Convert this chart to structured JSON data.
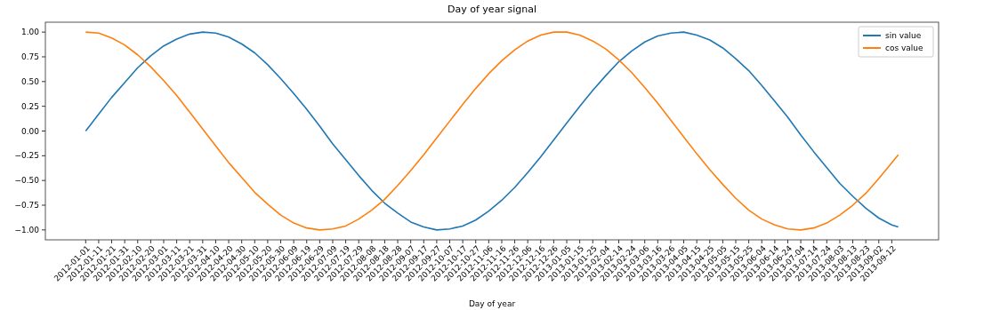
{
  "chart_data": {
    "type": "line",
    "title": "Day of year signal",
    "xlabel": "Day of year",
    "x": [
      "2012-01-01",
      "2012-01-11",
      "2012-01-21",
      "2012-01-31",
      "2012-02-10",
      "2012-02-20",
      "2012-03-01",
      "2012-03-11",
      "2012-03-21",
      "2012-03-31",
      "2012-04-10",
      "2012-04-20",
      "2012-04-30",
      "2012-05-10",
      "2012-05-20",
      "2012-05-30",
      "2012-06-09",
      "2012-06-19",
      "2012-06-29",
      "2012-07-09",
      "2012-07-19",
      "2012-07-29",
      "2012-08-08",
      "2012-08-18",
      "2012-08-28",
      "2012-09-07",
      "2012-09-17",
      "2012-09-27",
      "2012-10-07",
      "2012-10-17",
      "2012-10-27",
      "2012-11-06",
      "2012-11-16",
      "2012-11-26",
      "2012-12-06",
      "2012-12-16",
      "2012-12-26",
      "2013-01-05",
      "2013-01-15",
      "2013-01-25",
      "2013-02-04",
      "2013-02-14",
      "2013-02-24",
      "2013-03-06",
      "2013-03-16",
      "2013-03-26",
      "2013-04-05",
      "2013-04-15",
      "2013-04-25",
      "2013-05-05",
      "2013-05-15",
      "2013-05-25",
      "2013-06-04",
      "2013-06-14",
      "2013-06-24",
      "2013-07-04",
      "2013-07-14",
      "2013-07-24",
      "2013-08-03",
      "2013-08-13",
      "2013-08-23",
      "2013-09-02",
      "2013-09-12",
      "2013-09-17"
    ],
    "series": [
      {
        "name": "sin value",
        "color": "#1f77b4",
        "values": [
          0,
          0.17,
          0.34,
          0.49,
          0.64,
          0.76,
          0.86,
          0.93,
          0.98,
          1.0,
          0.99,
          0.95,
          0.88,
          0.79,
          0.67,
          0.53,
          0.38,
          0.22,
          0.05,
          -0.13,
          -0.29,
          -0.45,
          -0.6,
          -0.73,
          -0.83,
          -0.92,
          -0.97,
          -1.0,
          -0.99,
          -0.96,
          -0.9,
          -0.81,
          -0.7,
          -0.57,
          -0.42,
          -0.26,
          -0.09,
          0.08,
          0.25,
          0.41,
          0.56,
          0.7,
          0.81,
          0.9,
          0.96,
          0.99,
          1.0,
          0.97,
          0.92,
          0.84,
          0.73,
          0.61,
          0.46,
          0.3,
          0.14,
          -0.04,
          -0.21,
          -0.37,
          -0.53,
          -0.66,
          -0.78,
          -0.88,
          -0.95,
          -0.97
        ]
      },
      {
        "name": "cos value",
        "color": "#ff7f0e",
        "values": [
          1.0,
          0.99,
          0.94,
          0.87,
          0.77,
          0.65,
          0.51,
          0.36,
          0.19,
          0.02,
          -0.15,
          -0.32,
          -0.47,
          -0.62,
          -0.74,
          -0.85,
          -0.93,
          -0.98,
          -1.0,
          -0.99,
          -0.96,
          -0.89,
          -0.8,
          -0.69,
          -0.55,
          -0.4,
          -0.24,
          -0.07,
          0.1,
          0.27,
          0.43,
          0.58,
          0.71,
          0.82,
          0.91,
          0.97,
          1.0,
          1.0,
          0.97,
          0.91,
          0.83,
          0.72,
          0.59,
          0.44,
          0.28,
          0.11,
          -0.06,
          -0.23,
          -0.39,
          -0.54,
          -0.68,
          -0.8,
          -0.89,
          -0.95,
          -0.99,
          -1.0,
          -0.98,
          -0.93,
          -0.85,
          -0.75,
          -0.63,
          -0.48,
          -0.32,
          -0.24
        ]
      }
    ],
    "xlim": [
      "2011-12-01",
      "2013-10-18"
    ],
    "xticks": [
      "2012-01-01",
      "2012-01-11",
      "2012-01-21",
      "2012-01-31",
      "2012-02-10",
      "2012-02-20",
      "2012-03-01",
      "2012-03-11",
      "2012-03-21",
      "2012-03-31",
      "2012-04-10",
      "2012-04-20",
      "2012-04-30",
      "2012-05-10",
      "2012-05-20",
      "2012-05-30",
      "2012-06-09",
      "2012-06-19",
      "2012-06-29",
      "2012-07-09",
      "2012-07-19",
      "2012-07-29",
      "2012-08-08",
      "2012-08-18",
      "2012-08-28",
      "2012-09-07",
      "2012-09-17",
      "2012-09-27",
      "2012-10-07",
      "2012-10-17",
      "2012-10-27",
      "2012-11-06",
      "2012-11-16",
      "2012-11-26",
      "2012-12-06",
      "2012-12-16",
      "2012-12-26",
      "2013-01-05",
      "2013-01-15",
      "2013-01-25",
      "2013-02-04",
      "2013-02-14",
      "2013-02-24",
      "2013-03-06",
      "2013-03-16",
      "2013-03-26",
      "2013-04-05",
      "2013-04-15",
      "2013-04-25",
      "2013-05-05",
      "2013-05-15",
      "2013-05-25",
      "2013-06-04",
      "2013-06-14",
      "2013-06-24",
      "2013-07-04",
      "2013-07-14",
      "2013-07-24",
      "2013-08-03",
      "2013-08-13",
      "2013-08-23",
      "2013-09-02",
      "2013-09-12"
    ],
    "ylim": [
      -1.1,
      1.1
    ],
    "yticks": [
      {
        "value": -1,
        "label": "−1.00"
      },
      {
        "value": -0.75,
        "label": "−0.75"
      },
      {
        "value": -0.5,
        "label": "−0.50"
      },
      {
        "value": -0.25,
        "label": "−0.25"
      },
      {
        "value": 0,
        "label": "0.00"
      },
      {
        "value": 0.25,
        "label": "0.25"
      },
      {
        "value": 0.5,
        "label": "0.50"
      },
      {
        "value": 0.75,
        "label": "0.75"
      },
      {
        "value": 1,
        "label": "1.00"
      }
    ],
    "grid": false,
    "legend": "top right",
    "marker": "none",
    "line_style": "solid"
  }
}
